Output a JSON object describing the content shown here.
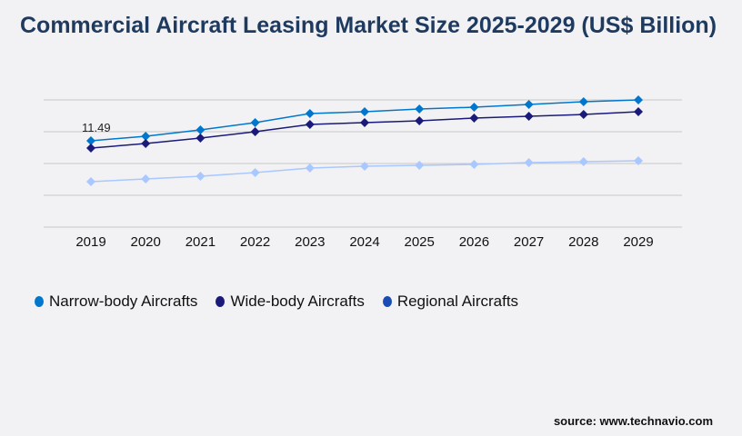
{
  "title": "Commercial Aircraft Leasing Market Size 2025-2029 (US$ Billion)",
  "source": "source: www.technavio.com",
  "chart_data": {
    "type": "line",
    "title": "Commercial Aircraft Leasing Market Size 2025-2029 (US$ Billion)",
    "xlabel": "",
    "ylabel": "",
    "categories": [
      "2019",
      "2020",
      "2021",
      "2022",
      "2023",
      "2024",
      "2025",
      "2026",
      "2027",
      "2028",
      "2029"
    ],
    "ylim": [
      0,
      16.93
    ],
    "grid": true,
    "legend_position": "bottom-left",
    "series": [
      {
        "name": "Narrow-body Aircrafts",
        "color": "#0077cc",
        "legend_color": "#0077cc",
        "values": [
          11.49,
          12.09,
          12.94,
          13.91,
          15.12,
          15.36,
          15.72,
          15.96,
          16.32,
          16.69,
          16.93
        ]
      },
      {
        "name": "Wide-body Aircrafts",
        "color": "#1a1a7a",
        "legend_color": "#1a1a7a",
        "values": [
          10.52,
          11.12,
          11.85,
          12.7,
          13.66,
          13.91,
          14.15,
          14.51,
          14.75,
          14.99,
          15.36
        ]
      },
      {
        "name": "Regional Aircrafts",
        "color": "#a9c8ff",
        "legend_color": "#1a4db3",
        "values": [
          6.05,
          6.41,
          6.77,
          7.26,
          7.86,
          8.1,
          8.22,
          8.34,
          8.58,
          8.71,
          8.83
        ]
      }
    ],
    "annotations": [
      {
        "category": "2019",
        "series": "Narrow-body Aircrafts",
        "text": "11.49"
      }
    ]
  }
}
